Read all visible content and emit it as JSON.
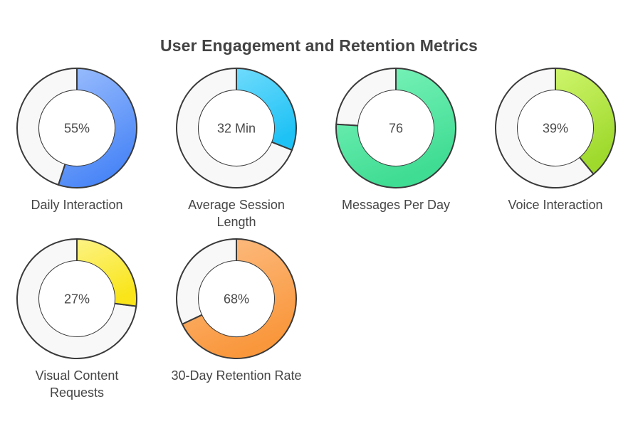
{
  "chart_data": {
    "type": "pie",
    "variant": "donut-grid",
    "title": "User Engagement and Retention Metrics",
    "series": [
      {
        "name": "Daily Interaction",
        "label_lines": [
          "Daily Interaction"
        ],
        "value_label": "55%",
        "fill_fraction": 0.55,
        "color_light": "#9dbffd",
        "color_dark": "#4a86f7"
      },
      {
        "name": "Average Session Length",
        "label_lines": [
          "Average Session",
          "Length"
        ],
        "value_label": "32 Min",
        "fill_fraction": 0.31,
        "color_light": "#6fdbfc",
        "color_dark": "#1fc2f5"
      },
      {
        "name": "Messages Per Day",
        "label_lines": [
          "Messages Per Day"
        ],
        "value_label": "76",
        "fill_fraction": 0.76,
        "color_light": "#7ff5bd",
        "color_dark": "#3fdc93"
      },
      {
        "name": "Voice Interaction",
        "label_lines": [
          "Voice Interaction"
        ],
        "value_label": "39%",
        "fill_fraction": 0.39,
        "color_light": "#cff56c",
        "color_dark": "#9ed92c"
      },
      {
        "name": "Visual Content Requests",
        "label_lines": [
          "Visual Content",
          "Requests"
        ],
        "value_label": "27%",
        "fill_fraction": 0.27,
        "color_light": "#fdf385",
        "color_dark": "#f9e51a"
      },
      {
        "name": "30-Day Retention Rate",
        "label_lines": [
          "30-Day Retention Rate"
        ],
        "value_label": "68%",
        "fill_fraction": 0.68,
        "color_light": "#fdbf87",
        "color_dark": "#f9973c"
      }
    ],
    "remainder_color": "#f8f8f8",
    "outline_color": "#3a3a3a",
    "legend": "none",
    "grid": false
  }
}
